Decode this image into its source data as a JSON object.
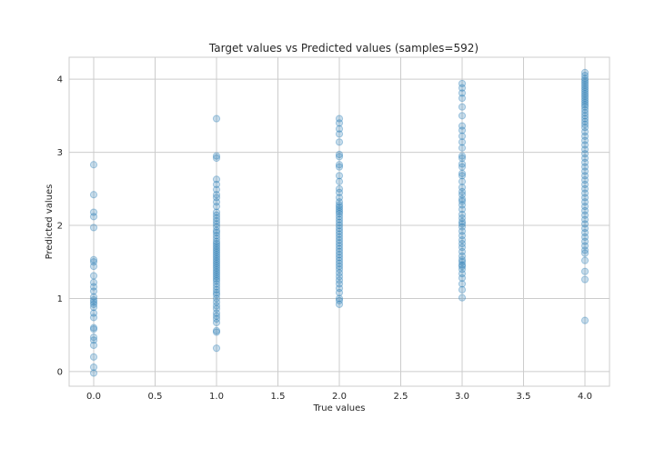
{
  "chart_data": {
    "type": "scatter",
    "title": "Target values vs Predicted values (samples=592)",
    "xlabel": "True values",
    "ylabel": "Predicted values",
    "xlim": [
      -0.2,
      4.2
    ],
    "ylim": [
      -0.2,
      4.3
    ],
    "xticks": [
      "0.0",
      "0.5",
      "1.0",
      "1.5",
      "2.0",
      "2.5",
      "3.0",
      "3.5",
      "4.0"
    ],
    "yticks": [
      "0",
      "1",
      "2",
      "3",
      "4"
    ],
    "grid": true,
    "marker_color": "#1f77b4",
    "marker_alpha": 0.25,
    "series": [
      {
        "x": 0,
        "y": [
          2.83,
          2.42,
          2.18,
          2.12,
          1.97,
          1.53,
          1.5,
          1.44,
          1.31,
          1.22,
          1.16,
          1.1,
          1.02,
          0.98,
          0.95,
          0.92,
          0.88,
          0.8,
          0.74,
          0.6,
          0.58,
          0.47,
          0.43,
          0.36,
          0.2,
          0.06,
          -0.02
        ]
      },
      {
        "x": 1,
        "y": [
          3.46,
          2.95,
          2.92,
          2.63,
          2.56,
          2.49,
          2.42,
          2.38,
          2.32,
          2.26,
          2.18,
          2.14,
          2.1,
          2.06,
          2.02,
          1.98,
          1.93,
          1.9,
          1.86,
          1.82,
          1.78,
          1.75,
          1.72,
          1.69,
          1.66,
          1.63,
          1.6,
          1.57,
          1.54,
          1.51,
          1.48,
          1.45,
          1.42,
          1.39,
          1.36,
          1.33,
          1.3,
          1.27,
          1.24,
          1.2,
          1.16,
          1.12,
          1.08,
          1.05,
          1.0,
          0.95,
          0.9,
          0.86,
          0.8,
          0.76,
          0.72,
          0.67,
          0.56,
          0.54,
          0.32
        ]
      },
      {
        "x": 2,
        "y": [
          3.46,
          3.4,
          3.32,
          3.25,
          3.14,
          2.97,
          2.94,
          2.83,
          2.8,
          2.68,
          2.6,
          2.5,
          2.45,
          2.38,
          2.32,
          2.28,
          2.25,
          2.22,
          2.19,
          2.16,
          2.12,
          2.08,
          2.04,
          2.0,
          1.96,
          1.92,
          1.88,
          1.84,
          1.8,
          1.76,
          1.72,
          1.68,
          1.64,
          1.6,
          1.56,
          1.52,
          1.48,
          1.44,
          1.4,
          1.35,
          1.3,
          1.25,
          1.2,
          1.14,
          1.08,
          1.0,
          0.97,
          0.92
        ]
      },
      {
        "x": 3,
        "y": [
          3.94,
          3.88,
          3.81,
          3.74,
          3.62,
          3.5,
          3.36,
          3.3,
          3.22,
          3.14,
          3.06,
          2.95,
          2.92,
          2.84,
          2.8,
          2.71,
          2.68,
          2.6,
          2.52,
          2.46,
          2.42,
          2.36,
          2.33,
          2.28,
          2.22,
          2.15,
          2.1,
          2.05,
          2.02,
          1.98,
          1.92,
          1.86,
          1.8,
          1.75,
          1.7,
          1.64,
          1.58,
          1.53,
          1.5,
          1.46,
          1.44,
          1.4,
          1.34,
          1.28,
          1.2,
          1.12,
          1.01
        ]
      },
      {
        "x": 4,
        "y": [
          4.09,
          4.05,
          4.01,
          3.98,
          3.95,
          3.92,
          3.89,
          3.86,
          3.83,
          3.8,
          3.77,
          3.74,
          3.71,
          3.68,
          3.65,
          3.62,
          3.58,
          3.54,
          3.5,
          3.46,
          3.42,
          3.38,
          3.34,
          3.28,
          3.22,
          3.16,
          3.1,
          3.04,
          2.98,
          2.92,
          2.86,
          2.8,
          2.74,
          2.68,
          2.62,
          2.56,
          2.5,
          2.44,
          2.38,
          2.32,
          2.26,
          2.2,
          2.14,
          2.08,
          2.02,
          1.96,
          1.9,
          1.84,
          1.78,
          1.72,
          1.66,
          1.62,
          1.52,
          1.37,
          1.26,
          0.7
        ]
      }
    ]
  }
}
